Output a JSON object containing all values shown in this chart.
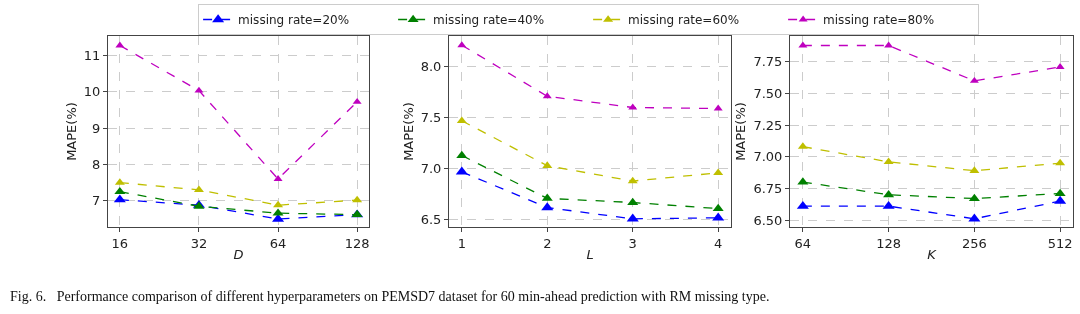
{
  "chart_data": [
    {
      "type": "line",
      "xlabel": "D",
      "ylabel": "MAPE(%)",
      "categories": [
        "16",
        "32",
        "64",
        "128"
      ],
      "ylim": [
        6.28,
        11.53
      ],
      "yticks": [
        7,
        8,
        9,
        10,
        11
      ],
      "grid": true,
      "marker": "triangle",
      "line_style": "dashed",
      "legend": "top",
      "annotations": [
        "Fig. 6.   Performance comparison of different hyperparameters on PEMSD7 dataset for 60 min-ahead prediction with RM missing type."
      ],
      "series": [
        {
          "name": "missing rate=20%",
          "color": "#0000ff",
          "values": [
            7.03,
            6.88,
            6.5,
            6.62
          ]
        },
        {
          "name": "missing rate=40%",
          "color": "#008000",
          "values": [
            7.25,
            6.85,
            6.66,
            6.62
          ]
        },
        {
          "name": "missing rate=60%",
          "color": "#bfbf00",
          "values": [
            7.5,
            7.3,
            6.88,
            7.02
          ]
        },
        {
          "name": "missing rate=80%",
          "color": "#bf00bf",
          "values": [
            11.27,
            10.03,
            7.6,
            9.72
          ]
        }
      ]
    },
    {
      "type": "line",
      "xlabel": "L",
      "ylabel": "MAPE(%)",
      "categories": [
        "1",
        "2",
        "3",
        "4"
      ],
      "ylim": [
        6.43,
        8.3
      ],
      "yticks": [
        {
          "value": 6.5,
          "label": "6.5"
        },
        {
          "value": 7.0,
          "label": "7.0"
        },
        {
          "value": 7.5,
          "label": "7.5"
        },
        {
          "value": 8.0,
          "label": "8.0"
        }
      ],
      "grid": true,
      "marker": "triangle",
      "line_style": "dashed",
      "series": [
        {
          "color": "#0000ff",
          "values": [
            6.97,
            6.62,
            6.51,
            6.52
          ]
        },
        {
          "color": "#008000",
          "values": [
            7.13,
            6.71,
            6.67,
            6.61
          ]
        },
        {
          "color": "#bfbf00",
          "values": [
            7.47,
            7.03,
            6.88,
            6.96
          ]
        },
        {
          "color": "#bf00bf",
          "values": [
            8.21,
            7.71,
            7.6,
            7.59
          ]
        }
      ]
    },
    {
      "type": "line",
      "xlabel": "K",
      "ylabel": "MAPE(%)",
      "categories": [
        "64",
        "128",
        "256",
        "512"
      ],
      "ylim": [
        6.445,
        7.955
      ],
      "yticks": [
        {
          "value": 6.5,
          "label": "6.50"
        },
        {
          "value": 6.75,
          "label": "6.75"
        },
        {
          "value": 7.0,
          "label": "7.00"
        },
        {
          "value": 7.25,
          "label": "7.25"
        },
        {
          "value": 7.5,
          "label": "7.50"
        },
        {
          "value": 7.75,
          "label": "7.75"
        }
      ],
      "grid": true,
      "marker": "triangle",
      "line_style": "dashed",
      "series": [
        {
          "color": "#0000ff",
          "values": [
            6.61,
            6.61,
            6.51,
            6.65
          ]
        },
        {
          "color": "#008000",
          "values": [
            6.8,
            6.7,
            6.67,
            6.71
          ]
        },
        {
          "color": "#bfbf00",
          "values": [
            7.08,
            6.96,
            6.89,
            6.95
          ]
        },
        {
          "color": "#bf00bf",
          "values": [
            7.88,
            7.88,
            7.6,
            7.71
          ]
        }
      ]
    }
  ]
}
